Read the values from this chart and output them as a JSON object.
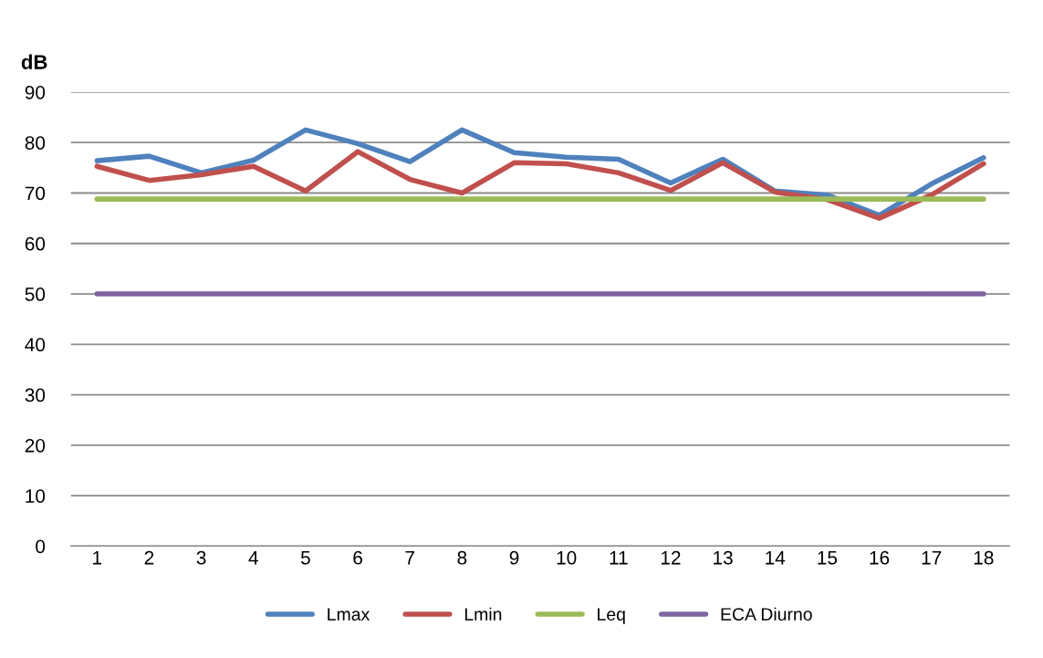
{
  "chart_data": {
    "type": "line",
    "ylabel": "dB",
    "categories": [
      "1",
      "2",
      "3",
      "4",
      "5",
      "6",
      "7",
      "8",
      "9",
      "10",
      "11",
      "12",
      "13",
      "14",
      "15",
      "16",
      "17",
      "18"
    ],
    "series": [
      {
        "name": "Lmax",
        "color": "#4f81bd",
        "values": [
          76.4,
          77.3,
          74,
          76.5,
          82.5,
          79.8,
          76.2,
          82.5,
          78,
          77.1,
          76.7,
          72,
          76.7,
          70.4,
          69.6,
          65.6,
          71.8,
          77
        ]
      },
      {
        "name": "Lmin",
        "color": "#c0504d",
        "values": [
          75.3,
          72.5,
          73.6,
          75.3,
          70.4,
          78.2,
          72.7,
          70,
          76,
          75.8,
          74,
          70.5,
          76,
          70.2,
          68.7,
          65,
          69.6,
          75.8
        ]
      },
      {
        "name": "Leq",
        "color": "#9bbb59",
        "values": [
          68.8,
          68.8,
          68.8,
          68.8,
          68.8,
          68.8,
          68.8,
          68.8,
          68.8,
          68.8,
          68.8,
          68.8,
          68.8,
          68.8,
          68.8,
          68.8,
          68.8,
          68.8
        ]
      },
      {
        "name": "ECA Diurno",
        "color": "#8064a2",
        "values": [
          50,
          50,
          50,
          50,
          50,
          50,
          50,
          50,
          50,
          50,
          50,
          50,
          50,
          50,
          50,
          50,
          50,
          50
        ]
      }
    ],
    "ylim": [
      0,
      90
    ],
    "yticks": [
      0,
      10,
      20,
      30,
      40,
      50,
      60,
      70,
      80,
      90
    ],
    "grid": "y",
    "legend": "bottom",
    "marker": "none",
    "line_style": "solid"
  }
}
